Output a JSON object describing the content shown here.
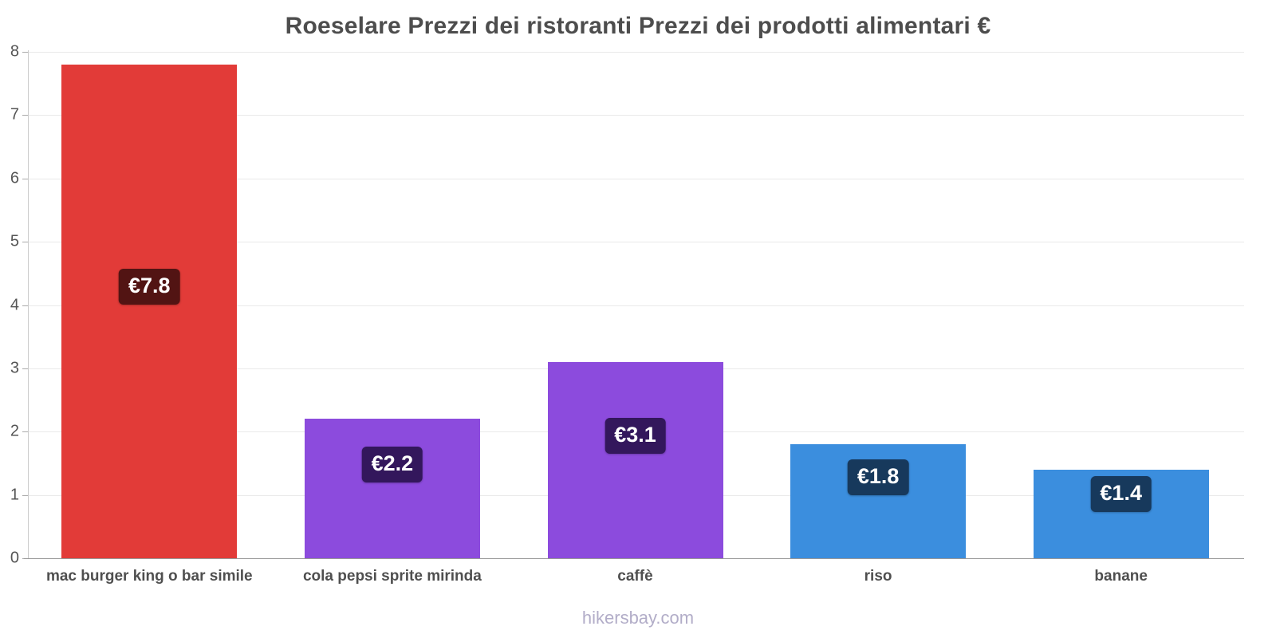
{
  "title": "Roeselare Prezzi dei ristoranti Prezzi dei prodotti alimentari €",
  "footer": "hikersbay.com",
  "chart_data": {
    "type": "bar",
    "title": "Roeselare Prezzi dei ristoranti Prezzi dei prodotti alimentari €",
    "categories": [
      "mac burger king o bar simile",
      "cola pepsi sprite mirinda",
      "caffè",
      "riso",
      "banane"
    ],
    "values": [
      7.8,
      2.2,
      3.1,
      1.8,
      1.4
    ],
    "value_labels": [
      "€7.8",
      "€2.2",
      "€3.1",
      "€1.8",
      "€1.4"
    ],
    "bar_colors": [
      "#e23b38",
      "#8c4bdd",
      "#8c4bdd",
      "#3b8ede",
      "#3b8ede"
    ],
    "label_bg_colors": [
      "#521413",
      "#33175c",
      "#33175c",
      "#17395c",
      "#17395c"
    ],
    "currency": "€",
    "xlabel": "",
    "ylabel": "",
    "ylim": [
      0,
      8
    ],
    "yticks": [
      0,
      1,
      2,
      3,
      4,
      5,
      6,
      7,
      8
    ],
    "grid": "horizontal",
    "legend": "none"
  }
}
